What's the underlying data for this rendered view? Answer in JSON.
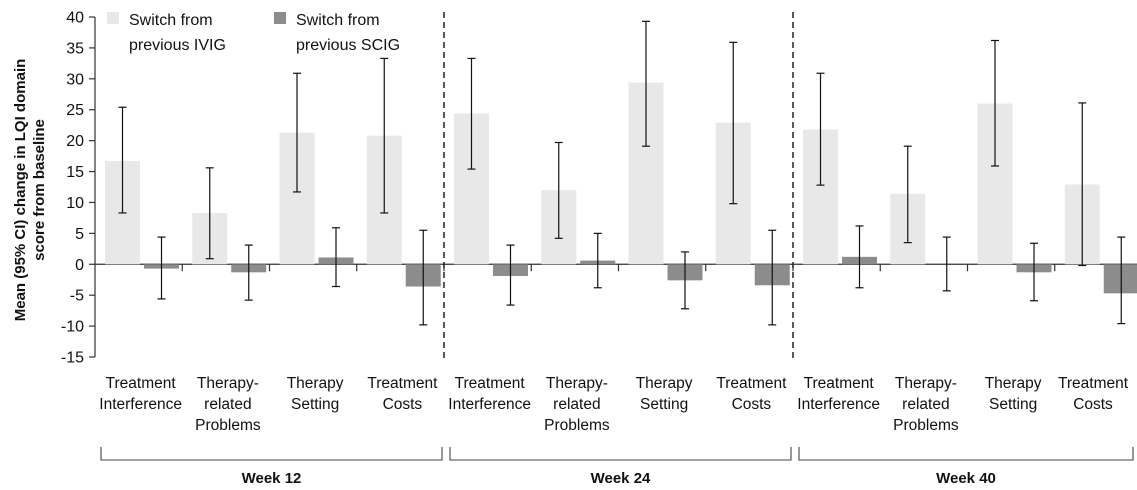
{
  "chart_data": {
    "type": "bar",
    "ylabel_line1": "Mean (95% CI) change in LQI domain",
    "ylabel_line2": "score from baseline",
    "ylim": [
      -15,
      40
    ],
    "yticks": [
      -15,
      -10,
      -5,
      0,
      5,
      10,
      15,
      20,
      25,
      30,
      35,
      40
    ],
    "legend_position": "top-left",
    "series_styles": [
      {
        "name_line1": "Switch from",
        "name_line2": "previous IVIG",
        "color": "#e8e8e8"
      },
      {
        "name_line1": "Switch from",
        "name_line2": "previous SCIG",
        "color": "#8c8c8c"
      }
    ],
    "groups": [
      {
        "label": "Week 12",
        "categories": [
          {
            "lines": [
              "Treatment",
              "Interference"
            ],
            "ivig": {
              "value": 16.7,
              "low": 8.3,
              "high": 25.4
            },
            "scig": {
              "value": -0.7,
              "low": -5.6,
              "high": 4.4
            }
          },
          {
            "lines": [
              "Therapy-",
              "related",
              "Problems"
            ],
            "ivig": {
              "value": 8.3,
              "low": 0.9,
              "high": 15.6
            },
            "scig": {
              "value": -1.3,
              "low": -5.8,
              "high": 3.1
            }
          },
          {
            "lines": [
              "Therapy",
              "Setting"
            ],
            "ivig": {
              "value": 21.3,
              "low": 11.7,
              "high": 30.9
            },
            "scig": {
              "value": 1.1,
              "low": -3.6,
              "high": 5.9
            }
          },
          {
            "lines": [
              "Treatment",
              "Costs"
            ],
            "ivig": {
              "value": 20.8,
              "low": 8.3,
              "high": 33.3
            },
            "scig": {
              "value": -3.6,
              "low": -9.8,
              "high": 5.5
            }
          }
        ]
      },
      {
        "label": "Week 24",
        "categories": [
          {
            "lines": [
              "Treatment",
              "Interference"
            ],
            "ivig": {
              "value": 24.4,
              "low": 15.4,
              "high": 33.3
            },
            "scig": {
              "value": -1.9,
              "low": -6.6,
              "high": 3.1
            }
          },
          {
            "lines": [
              "Therapy-",
              "related",
              "Problems"
            ],
            "ivig": {
              "value": 12.0,
              "low": 4.2,
              "high": 19.7
            },
            "scig": {
              "value": 0.6,
              "low": -3.8,
              "high": 5.0
            }
          },
          {
            "lines": [
              "Therapy",
              "Setting"
            ],
            "ivig": {
              "value": 29.4,
              "low": 19.1,
              "high": 39.3
            },
            "scig": {
              "value": -2.6,
              "low": -7.2,
              "high": 2.0
            }
          },
          {
            "lines": [
              "Treatment",
              "Costs"
            ],
            "ivig": {
              "value": 22.9,
              "low": 9.8,
              "high": 35.9
            },
            "scig": {
              "value": -3.4,
              "low": -9.8,
              "high": 5.5
            }
          }
        ]
      },
      {
        "label": "Week 40",
        "categories": [
          {
            "lines": [
              "Treatment",
              "Interference"
            ],
            "ivig": {
              "value": 21.8,
              "low": 12.8,
              "high": 30.9
            },
            "scig": {
              "value": 1.2,
              "low": -3.8,
              "high": 6.2
            }
          },
          {
            "lines": [
              "Therapy-",
              "related",
              "Problems"
            ],
            "ivig": {
              "value": 11.4,
              "low": 3.5,
              "high": 19.1
            },
            "scig": {
              "value": 0.0,
              "low": -4.3,
              "high": 4.4
            }
          },
          {
            "lines": [
              "Therapy",
              "Setting"
            ],
            "ivig": {
              "value": 26.0,
              "low": 15.9,
              "high": 36.2
            },
            "scig": {
              "value": -1.3,
              "low": -5.9,
              "high": 3.4
            }
          },
          {
            "lines": [
              "Treatment",
              "Costs"
            ],
            "ivig": {
              "value": 12.9,
              "low": -0.2,
              "high": 26.1
            },
            "scig": {
              "value": -4.7,
              "low": -9.6,
              "high": 4.4
            }
          }
        ]
      }
    ]
  }
}
